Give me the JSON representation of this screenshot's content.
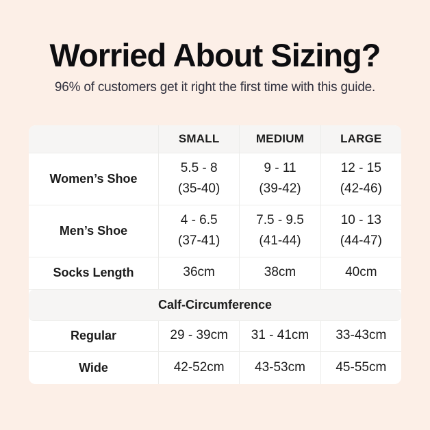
{
  "colors": {
    "bg": "#fcefe7",
    "card_bg": "#ffffff",
    "header_bg": "#f6f5f4",
    "border": "#ececea",
    "title_color": "#0d0d10",
    "subtitle_color": "#30303d",
    "text": "#1b1b1b"
  },
  "header": {
    "title": "Worried About Sizing?",
    "subtitle": "96% of customers get it right the first time with this guide."
  },
  "table": {
    "columns": [
      "",
      "SMALL",
      "MEDIUM",
      "LARGE"
    ],
    "rows": [
      {
        "label": "Women’s Shoe",
        "values": [
          "5.5 - 8\n(35-40)",
          "9 - 11\n(39-42)",
          "12 - 15\n(42-46)"
        ]
      },
      {
        "label": "Men’s Shoe",
        "values": [
          "4 - 6.5\n(37-41)",
          "7.5 - 9.5\n(41-44)",
          "10 - 13\n(44-47)"
        ]
      },
      {
        "label": "Socks Length",
        "values": [
          "36cm",
          "38cm",
          "40cm"
        ]
      }
    ],
    "section_header": "Calf-Circumference",
    "section_rows": [
      {
        "label": "Regular",
        "values": [
          "29 - 39cm",
          "31 - 41cm",
          "33-43cm"
        ]
      },
      {
        "label": "Wide",
        "values": [
          "42-52cm",
          "43-53cm",
          "45-55cm"
        ]
      }
    ]
  }
}
